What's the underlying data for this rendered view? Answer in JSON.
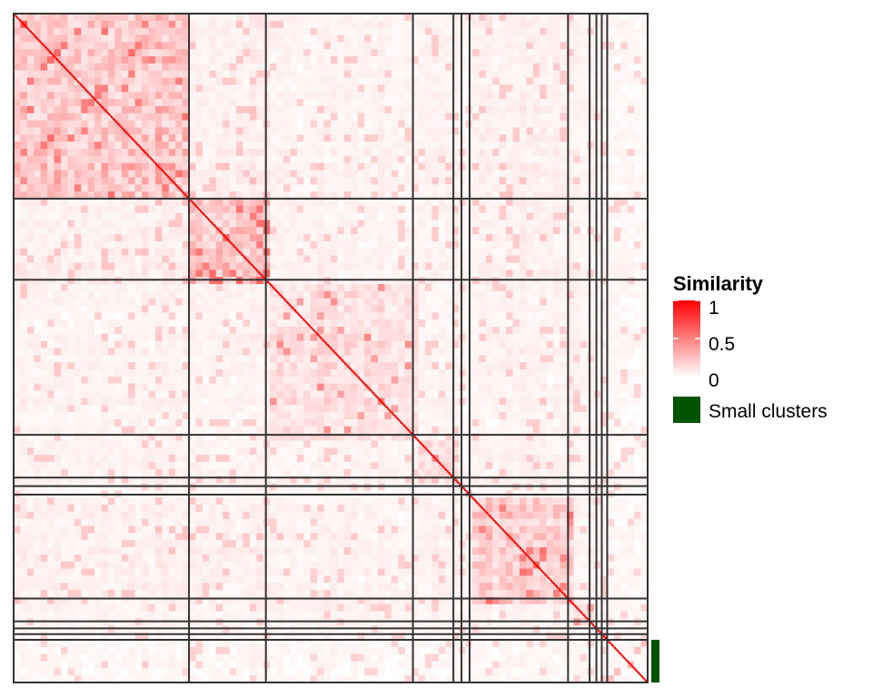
{
  "chart_data": {
    "type": "heatmap",
    "title": "",
    "xlabel": "",
    "ylabel": "",
    "color_scale": {
      "min": 0,
      "mid": 0.5,
      "max": 1,
      "low_color": "#ffffff",
      "high_color": "#ff0000"
    },
    "legend": {
      "title": "Similarity",
      "ticks": [
        "1",
        "0.5",
        "0"
      ],
      "tick_values": [
        1,
        0.5,
        0
      ],
      "small_clusters_label": "Small clusters",
      "small_clusters_color": "#005400",
      "placement": "right"
    },
    "matrix_size": 470,
    "cluster_boundaries": [
      0,
      130,
      187,
      296,
      326,
      332,
      338,
      411,
      427,
      432,
      436,
      440,
      470
    ],
    "cluster_mean_similarity": [
      0.28,
      0.3,
      0.16,
      0.22,
      0.1,
      0.06,
      0.22,
      0.14,
      0.12,
      0.1,
      0.1,
      0.04
    ],
    "small_clusters_range": [
      440,
      470
    ],
    "diagonal_similarity": 1
  }
}
